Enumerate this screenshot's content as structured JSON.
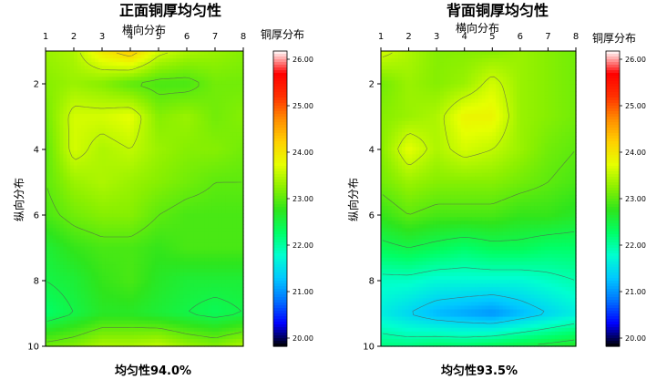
{
  "colors": {
    "scale": [
      "#000000",
      "#0000ff",
      "#0072ff",
      "#00c8ff",
      "#00ffd0",
      "#00ff66",
      "#2ee51c",
      "#8cf000",
      "#e6ff00",
      "#ffd000",
      "#ff8c00",
      "#ff3000",
      "#ff0000",
      "#ffffff"
    ],
    "contour": "#555555"
  },
  "chart_data": [
    {
      "type": "heatmap",
      "title": "正面铜厚均匀性",
      "xlabel": "横向分布",
      "ylabel": "纵向分布",
      "colorbar_label": "铜厚分布",
      "footer": "均匀性94.0%",
      "x_ticks": [
        "1",
        "2",
        "3",
        "4",
        "5",
        "6",
        "7",
        "8"
      ],
      "y_ticks": [
        "2",
        "4",
        "6",
        "8",
        "10"
      ],
      "xlim": [
        1,
        8
      ],
      "ylim": [
        1,
        10
      ],
      "y_inverted": true,
      "colorbar_ticks": [
        "20.00",
        "21.00",
        "22.00",
        "23.00",
        "24.00",
        "25.00",
        "26.00"
      ],
      "colorbar_range": [
        20,
        26
      ],
      "grid": [
        [
          23.3,
          23.4,
          23.9,
          24.2,
          23.6,
          23.4,
          23.3,
          23.2
        ],
        [
          23.2,
          23.3,
          23.2,
          23.0,
          22.9,
          22.9,
          23.1,
          23.1
        ],
        [
          23.1,
          23.6,
          23.6,
          23.7,
          23.2,
          23.3,
          23.1,
          23.2
        ],
        [
          23.0,
          23.6,
          23.4,
          23.5,
          23.3,
          23.2,
          23.2,
          23.1
        ],
        [
          23.0,
          23.3,
          23.4,
          23.3,
          23.2,
          23.1,
          23.0,
          23.0
        ],
        [
          22.9,
          23.1,
          23.2,
          23.2,
          23.0,
          22.9,
          22.9,
          22.9
        ],
        [
          22.6,
          22.8,
          22.9,
          22.9,
          22.8,
          22.9,
          22.9,
          22.9
        ],
        [
          22.5,
          22.6,
          22.8,
          22.9,
          22.7,
          22.6,
          22.6,
          22.6
        ],
        [
          22.3,
          22.5,
          22.7,
          22.7,
          22.6,
          22.5,
          22.4,
          22.5
        ],
        [
          23.1,
          23.2,
          23.4,
          23.4,
          23.5,
          23.3,
          23.2,
          23.4
        ]
      ]
    },
    {
      "type": "heatmap",
      "title": "背面铜厚均匀性",
      "xlabel": "横向分布",
      "ylabel": "纵向分布",
      "colorbar_label": "铜厚分布",
      "footer": "均匀性93.5%",
      "x_ticks": [
        "1",
        "2",
        "3",
        "4",
        "5",
        "6",
        "7",
        "8"
      ],
      "y_ticks": [
        "2",
        "4",
        "6",
        "8",
        "10"
      ],
      "xlim": [
        1,
        8
      ],
      "ylim": [
        1,
        10
      ],
      "y_inverted": true,
      "colorbar_ticks": [
        "20.00",
        "21.00",
        "22.00",
        "23.00",
        "24.00",
        "25.00",
        "26.00"
      ],
      "colorbar_range": [
        20,
        26
      ],
      "grid": [
        [
          23.6,
          23.4,
          23.2,
          23.2,
          23.2,
          23.3,
          23.2,
          23.1
        ],
        [
          23.1,
          23.3,
          23.2,
          23.3,
          23.6,
          23.3,
          23.2,
          23.1
        ],
        [
          23.2,
          23.3,
          23.4,
          23.8,
          23.8,
          23.3,
          23.2,
          23.1
        ],
        [
          23.2,
          23.7,
          23.4,
          23.6,
          23.5,
          23.3,
          23.1,
          23.0
        ],
        [
          23.1,
          23.3,
          23.2,
          23.2,
          23.2,
          23.1,
          23.0,
          22.9
        ],
        [
          22.8,
          23.0,
          22.9,
          22.9,
          22.9,
          22.8,
          22.8,
          22.7
        ],
        [
          22.4,
          22.5,
          22.4,
          22.3,
          22.4,
          22.4,
          22.3,
          22.3
        ],
        [
          21.9,
          21.9,
          21.8,
          21.8,
          21.8,
          21.8,
          21.9,
          22.0
        ],
        [
          21.7,
          21.5,
          21.3,
          21.2,
          21.1,
          21.3,
          21.5,
          21.7
        ],
        [
          22.2,
          22.2,
          22.3,
          22.3,
          22.4,
          22.5,
          22.6,
          22.7
        ]
      ]
    }
  ]
}
